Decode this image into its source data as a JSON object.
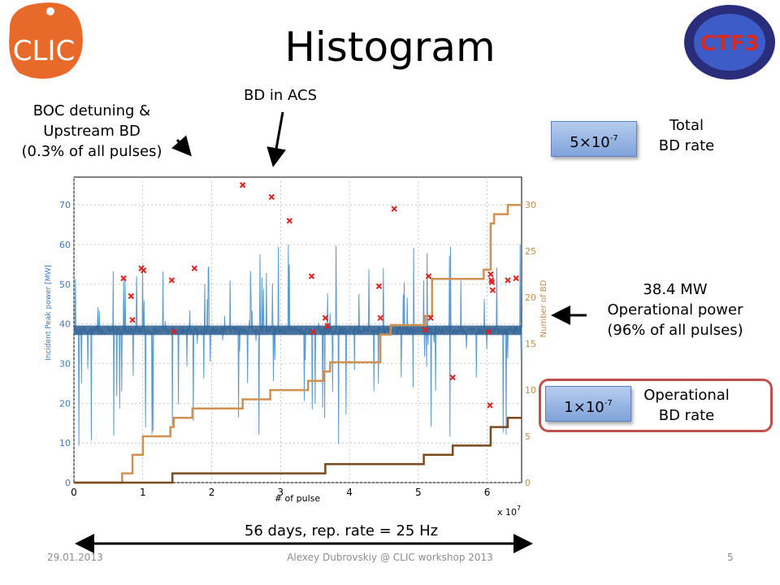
{
  "slide": {
    "title": "Histogram",
    "footer_left": "29.01.2013",
    "footer_center": "Alexey Dubrovskiy @ CLIC workshop 2013",
    "footer_right": "5",
    "logo_left_text": "CLIC",
    "logo_right_text": "CTF3"
  },
  "annotations": {
    "boc_line1": "BOC detuning &",
    "boc_line2": "Upstream BD",
    "boc_line3": "(0.3% of all pulses)",
    "bd_acs": "BD in ACS",
    "total_rate_value": "5×10",
    "total_rate_exp": "-7",
    "total_rate_label1": "Total",
    "total_rate_label2": "BD rate",
    "op_power_line1": "38.4 MW",
    "op_power_line2": "Operational power",
    "op_power_line3": "(96% of all pulses)",
    "op_rate_value": "1×10",
    "op_rate_exp": "-7",
    "op_rate_label1": "Operational",
    "op_rate_label2": "BD rate",
    "duration": "56 days, rep. rate = 25 Hz"
  },
  "chart_data": {
    "type": "line",
    "xlabel": "# of pulse",
    "x_multiplier": "x 10",
    "x_multiplier_exp": "7",
    "ylabel": "Incident Peak power [MW]",
    "y2label": "Number of BD",
    "xlim": [
      0,
      6.5
    ],
    "ylim": [
      0,
      77
    ],
    "y2lim": [
      0,
      33
    ],
    "xticks": [
      "0",
      "1",
      "2",
      "3",
      "4",
      "5",
      "6"
    ],
    "yticks": [
      "0",
      "10",
      "20",
      "30",
      "40",
      "50",
      "60",
      "70"
    ],
    "y2ticks": [
      "0",
      "5",
      "10",
      "15",
      "20",
      "25",
      "30"
    ],
    "grid": true,
    "colors": {
      "power": "#5b9bd5",
      "power_dense": "#2f5f8f",
      "bd_total": "#d09050",
      "bd_operational": "#7a4a1e",
      "bd_marker": "#e0201a"
    },
    "series": [
      {
        "name": "Incident Peak power [MW]",
        "baseline": 38.4
      },
      {
        "name": "Number of BD",
        "x": [
          0,
          0.7,
          0.7,
          0.85,
          0.85,
          1.0,
          1.0,
          1.4,
          1.4,
          1.45,
          1.45,
          1.72,
          1.72,
          2.45,
          2.45,
          2.85,
          2.85,
          3.4,
          3.4,
          3.62,
          3.62,
          3.72,
          3.72,
          4.45,
          4.45,
          4.6,
          4.6,
          5.1,
          5.1,
          5.2,
          5.2,
          5.95,
          5.95,
          6.05,
          6.05,
          6.1,
          6.1,
          6.3,
          6.3,
          6.5
        ],
        "y": [
          0,
          0,
          1,
          1,
          3,
          3,
          5,
          5,
          6,
          6,
          7,
          7,
          8,
          8,
          9,
          9,
          10,
          10,
          11,
          11,
          12,
          12,
          13,
          13,
          16,
          16,
          17,
          17,
          18,
          18,
          22,
          22,
          23,
          23,
          28,
          28,
          29,
          29,
          30,
          30
        ]
      },
      {
        "name": "Operational BD",
        "x": [
          0,
          1.43,
          1.43,
          3.65,
          3.65,
          5.08,
          5.08,
          5.5,
          5.5,
          6.05,
          6.05,
          6.3,
          6.3,
          6.5
        ],
        "y": [
          0,
          0,
          1,
          1,
          2,
          2,
          3,
          3,
          4,
          4,
          6,
          6,
          7,
          7
        ]
      }
    ],
    "bd_markers": {
      "x": [
        0.72,
        0.83,
        0.85,
        0.98,
        1.01,
        1.42,
        1.45,
        1.75,
        2.45,
        2.87,
        3.13,
        3.45,
        3.47,
        3.65,
        3.68,
        4.43,
        4.45,
        4.65,
        5.1,
        5.15,
        5.18,
        5.5,
        6.02,
        6.04,
        6.05,
        6.06,
        6.07,
        6.08,
        6.3,
        6.42
      ],
      "y": [
        51.5,
        47,
        41,
        54,
        53.5,
        51,
        38,
        54,
        75,
        72,
        66,
        52,
        38,
        41.5,
        39.5,
        49.5,
        41.5,
        69,
        38.5,
        52,
        41.5,
        26.5,
        38,
        19.5,
        52.5,
        51,
        50.5,
        48.5,
        51,
        51.5
      ]
    }
  }
}
